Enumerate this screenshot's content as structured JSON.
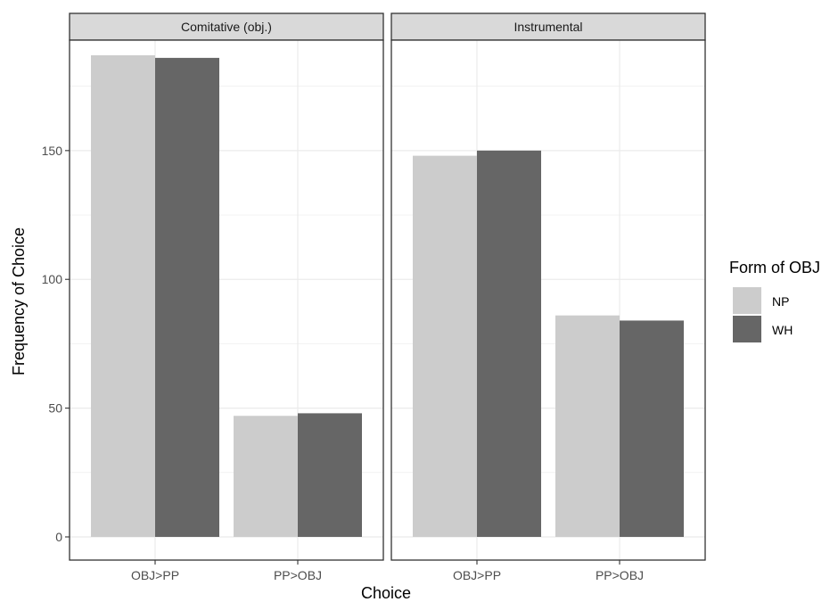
{
  "chart_data": {
    "type": "bar",
    "xlabel": "Choice",
    "ylabel": "Frequency of Choice",
    "ylim": [
      0,
      187
    ],
    "y_ticks": [
      0,
      50,
      100,
      150
    ],
    "categories": [
      "OBJ>PP",
      "PP>OBJ"
    ],
    "legend": {
      "title": "Form of OBJ",
      "position": "right",
      "entries": [
        {
          "name": "NP",
          "color": "#cccccc"
        },
        {
          "name": "WH",
          "color": "#666666"
        }
      ]
    },
    "panels": [
      {
        "strip": "Comitative (obj.)",
        "series": [
          {
            "name": "NP",
            "values": [
              187,
              47
            ]
          },
          {
            "name": "WH",
            "values": [
              186,
              48
            ]
          }
        ]
      },
      {
        "strip": "Instrumental",
        "series": [
          {
            "name": "NP",
            "values": [
              148,
              86
            ]
          },
          {
            "name": "WH",
            "values": [
              150,
              84
            ]
          }
        ]
      }
    ],
    "grid": true,
    "colors": {
      "grid": "#ebebeb",
      "panel_border": "#333333",
      "strip_fill": "#d9d9d9",
      "tick": "#333333"
    }
  }
}
